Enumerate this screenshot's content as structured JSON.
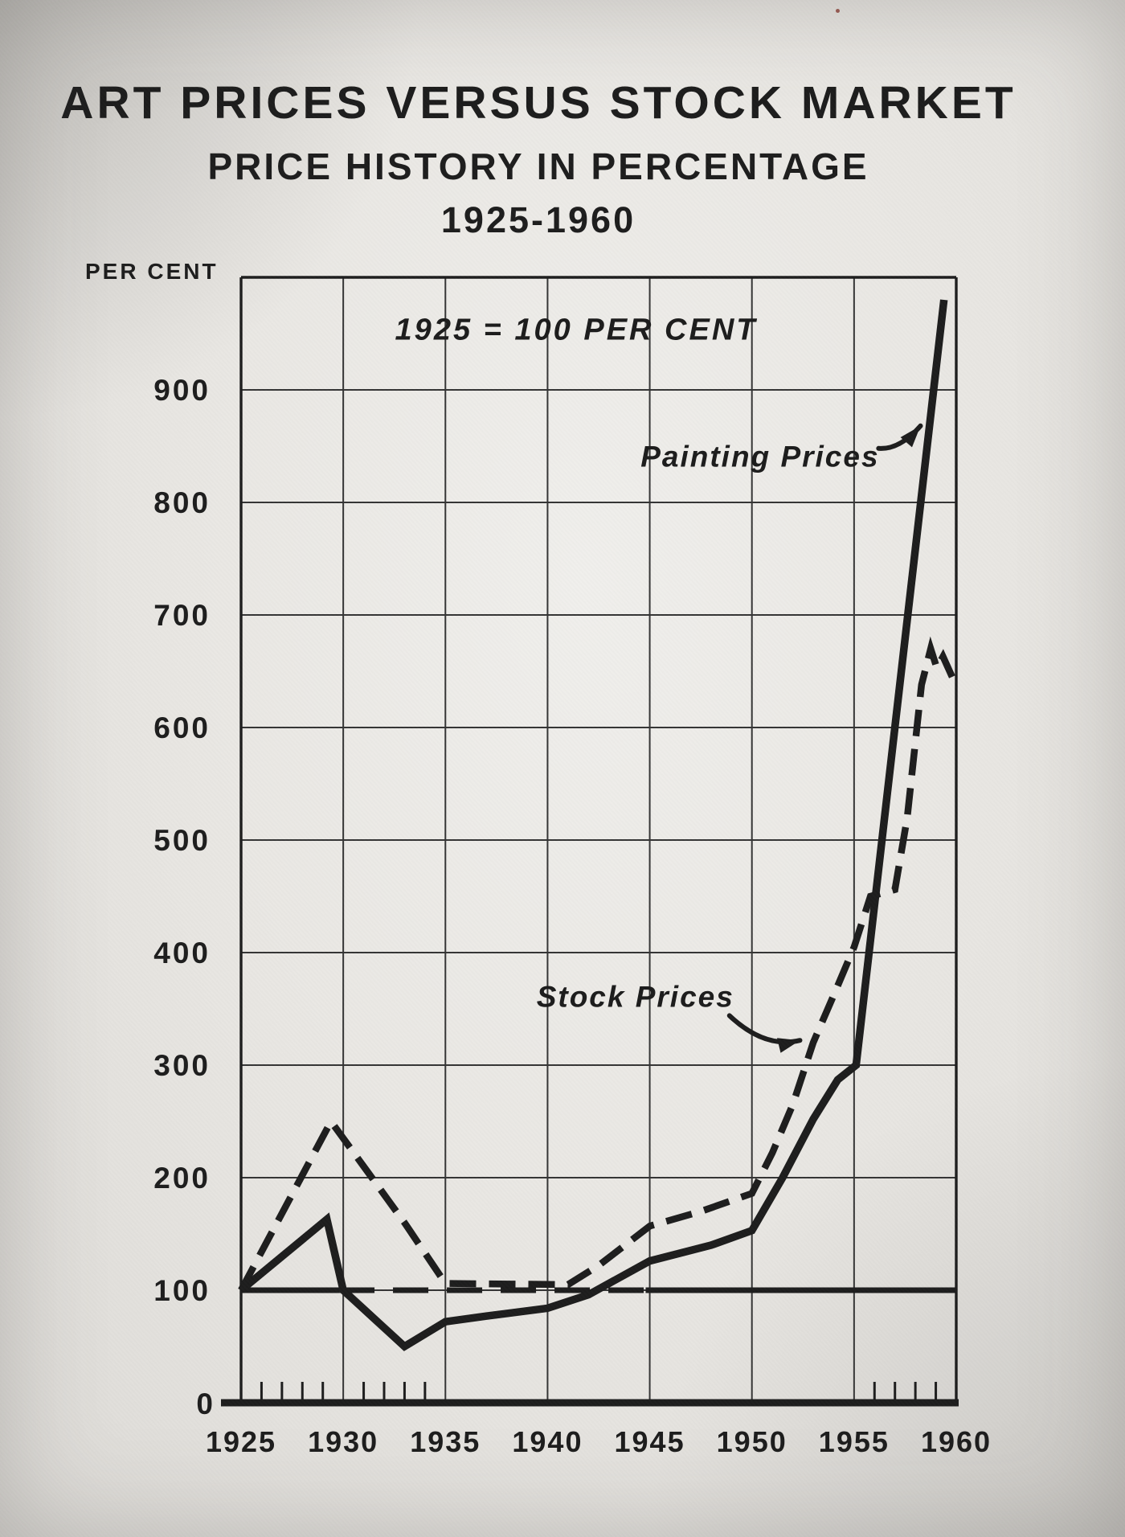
{
  "page": {
    "title_line1": "ART PRICES VERSUS STOCK MARKET",
    "title_line2": "PRICE HISTORY IN PERCENTAGE",
    "title_line3": "1925-1960",
    "y_axis_caption": "PER CENT"
  },
  "colors": {
    "paper": "#e9e7e3",
    "ink": "#1d1d1d",
    "grid": "#353535"
  },
  "chart_data": {
    "type": "line",
    "title": "ART PRICES VERSUS STOCK MARKET",
    "subtitle": "PRICE HISTORY IN PERCENTAGE 1925-1960",
    "note": "1925 = 100 PER CENT",
    "xlabel": "",
    "ylabel": "PER CENT",
    "xlim": [
      1925,
      1960
    ],
    "ylim": [
      0,
      1000
    ],
    "grid": true,
    "x_ticks": [
      1925,
      1930,
      1935,
      1940,
      1945,
      1950,
      1955,
      1960
    ],
    "x_tick_labels": [
      "1925",
      "1930",
      "1935",
      "1940",
      "1945",
      "1950",
      "1955",
      "1960"
    ],
    "y_ticks": [
      0,
      100,
      200,
      300,
      400,
      500,
      600,
      700,
      800,
      900
    ],
    "y_tick_labels": [
      "0",
      "100",
      "200",
      "300",
      "400",
      "500",
      "600",
      "700",
      "800",
      "900"
    ],
    "minor_x_ticks": [
      1926,
      1927,
      1928,
      1929,
      1931,
      1932,
      1933,
      1934,
      1956,
      1957,
      1958,
      1959
    ],
    "baseline": {
      "value": 100,
      "solid_segments": [
        [
          1925,
          1929.8
        ],
        [
          1944.8,
          1960
        ]
      ],
      "dashed_segments": [
        [
          1929.8,
          1944.8
        ]
      ]
    },
    "series": [
      {
        "name": "Painting Prices",
        "style": "solid",
        "points": [
          [
            1925,
            100
          ],
          [
            1929.2,
            163
          ],
          [
            1930,
            100
          ],
          [
            1933,
            50
          ],
          [
            1935,
            72
          ],
          [
            1937,
            77
          ],
          [
            1940,
            84
          ],
          [
            1942,
            96
          ],
          [
            1945,
            126
          ],
          [
            1948,
            140
          ],
          [
            1950,
            153
          ],
          [
            1951.5,
            200
          ],
          [
            1953,
            252
          ],
          [
            1954.2,
            287
          ],
          [
            1955.1,
            300
          ],
          [
            1959.4,
            980
          ]
        ]
      },
      {
        "name": "Stock Prices",
        "style": "dashed",
        "points": [
          [
            1925,
            100
          ],
          [
            1929.4,
            250
          ],
          [
            1931,
            210
          ],
          [
            1933,
            160
          ],
          [
            1935,
            106
          ],
          [
            1941,
            105
          ],
          [
            1942.5,
            122
          ],
          [
            1945,
            157
          ],
          [
            1947.5,
            170
          ],
          [
            1950,
            186
          ],
          [
            1951,
            222
          ],
          [
            1952,
            265
          ],
          [
            1953,
            320
          ],
          [
            1954,
            362
          ],
          [
            1955,
            405
          ],
          [
            1955.8,
            450
          ],
          [
            1957,
            456
          ],
          [
            1957.6,
            520
          ],
          [
            1958.3,
            638
          ],
          [
            1958.75,
            670
          ],
          [
            1959.05,
            653
          ],
          [
            1959.35,
            663
          ],
          [
            1959.8,
            645
          ]
        ]
      }
    ],
    "annotations": [
      {
        "text": "1925 = 100 PER CENT",
        "x": 1941.4,
        "y": 954
      },
      {
        "text": "Painting Prices",
        "x": 1950.4,
        "y": 841,
        "arrow": {
          "from": [
            1956.2,
            848
          ],
          "to": [
            1958.25,
            868
          ],
          "sag": 16
        }
      },
      {
        "text": "Stock Prices",
        "x": 1944.3,
        "y": 361,
        "arrow": {
          "from": [
            1948.9,
            344
          ],
          "to": [
            1952.35,
            322
          ],
          "sag": 26
        }
      }
    ]
  }
}
